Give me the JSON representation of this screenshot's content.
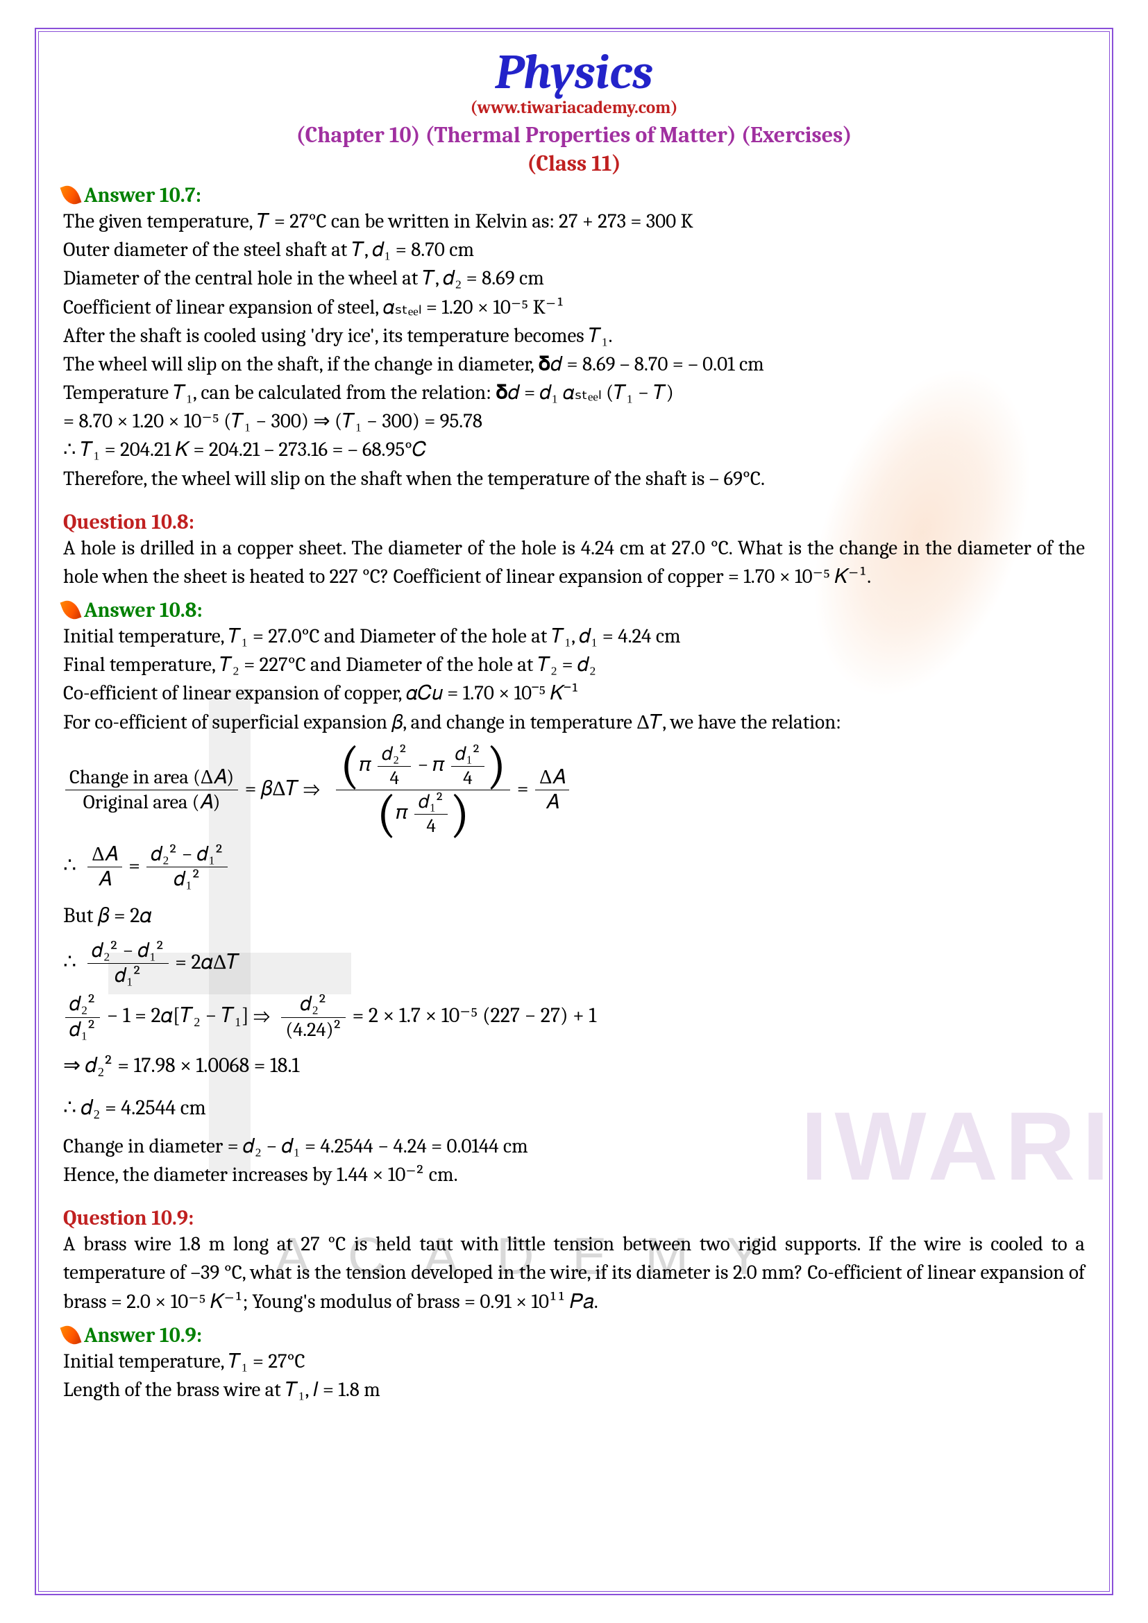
{
  "header": {
    "title": "Physics",
    "website": "(www.tiwariacademy.com)",
    "chapter": "(Chapter 10) (Thermal Properties of Matter) (Exercises)",
    "class_label": "(Class 11)"
  },
  "watermark": {
    "brand": "IWARI",
    "sub": "ACADEMY",
    "brand_color": "rgba(180,140,200,0.25)",
    "sub_color": "rgba(130,130,130,0.3)"
  },
  "colors": {
    "title": "#2323c9",
    "red": "#c02020",
    "purple": "#a030a0",
    "green": "#008000",
    "border": "#8a4fd8"
  },
  "ans107": {
    "heading": "Answer 10.7:",
    "l1": "The given temperature, 𝑇  =  27°C can be written in Kelvin as: 27  +  273  =  300 K",
    "l2": "Outer diameter of the steel shaft at 𝑇, 𝑑₁  =  8.70 cm",
    "l3": "Diameter of the central hole in the wheel at 𝑇, 𝑑₂  =  8.69 cm",
    "l4": "Coefficient of linear expansion of steel, 𝛼ₛₜₑₑₗ  =  1.20  ×  10⁻⁵ K⁻¹",
    "l5": "After the shaft is cooled using 'dry ice', its temperature becomes 𝑇₁.",
    "l6": "The wheel will slip on the shaft, if the change in diameter, 𝛅𝑑  =  8.69 – 8.70 = –  0.01 cm",
    "l7": "Temperature 𝑇₁, can be calculated from the relation: 𝛅𝑑  =  𝑑₁ 𝛼ₛₜₑₑₗ (𝑇₁ − 𝑇)",
    "l8": "=  8.70  ×  1.20  ×  10⁻⁵ (𝑇₁ − 300) ⇒ (𝑇₁ − 300)  =  95.78",
    "l9": "∴  𝑇₁ =  204.21 𝐾 =  204.21 – 273.16 = – 68.95°𝐶",
    "l10": "Therefore, the wheel will slip on the shaft when the temperature of the shaft is – 69°C."
  },
  "q108": {
    "heading": "Question 10.8:",
    "text": "A hole is drilled in a copper sheet. The diameter of the hole is 4.24 cm at 27.0 °C. What is the change in the diameter of the hole when the sheet is heated to 227 °C? Coefficient of linear expansion of copper =  1.70  ×  10⁻⁵ 𝐾⁻¹."
  },
  "ans108": {
    "heading": "Answer 10.8:",
    "l1": "Initial temperature, 𝑇₁  =  27.0°C and Diameter of the hole at 𝑇₁, 𝑑₁ =  4.24 cm",
    "l2": "Final temperature, 𝑇₂ =  227°C and Diameter of the hole at 𝑇₂  =  𝑑₂",
    "l3": "Co-efficient of linear expansion of copper, 𝛼𝐶𝑢 =  1.70  ×  10⁻⁵ 𝐾⁻¹",
    "l4": "For co-efficient of superficial expansion 𝛽, and change in temperature Δ𝑇, we have the relation:",
    "eq1_lhs_num": "Change in area (Δ𝐴)",
    "eq1_lhs_den": "Original area (𝐴)",
    "eq1_mid": "= 𝛽Δ𝑇   ⇒",
    "eq1_rhs": "Δ𝐴",
    "eq1_rhs_den": "𝐴",
    "eq2_pre": "∴",
    "eq2_num": "Δ𝐴",
    "eq2_den": "𝐴",
    "eq2_eq": "=",
    "eq2_rhs_num": "𝑑₂² − 𝑑₁²",
    "eq2_rhs_den": "𝑑₁²",
    "eq3": "But 𝛽 = 2𝛼",
    "eq4_pre": "∴",
    "eq4_num": "𝑑₂² − 𝑑₁²",
    "eq4_den": "𝑑₁²",
    "eq4_rhs": "= 2𝛼Δ𝑇",
    "eq5_lnum": "𝑑₂²",
    "eq5_lden": "𝑑₁²",
    "eq5_mid": "− 1 = 2𝛼[𝑇₂ − 𝑇₁] ⇒",
    "eq5_rnum": "𝑑₂²",
    "eq5_rden": "(4.24)²",
    "eq5_rhs": "= 2 × 1.7 × 10⁻⁵ (227 − 27) + 1",
    "eq6": "⇒ 𝑑₂² = 17.98 × 1.0068 = 18.1",
    "eq7": "∴  𝑑₂ = 4.2544 cm",
    "l5": "Change in diameter =  𝑑₂ − 𝑑₁ = 4.2544 − 4.24  =  0.0144 cm",
    "l6": "Hence, the diameter increases by 1.44  ×  10⁻² cm."
  },
  "q109": {
    "heading": "Question 10.9:",
    "text": "A brass wire 1.8 m long at 27 °C is held taut with little tension between two rigid supports. If the wire is cooled to a temperature of –39 °C, what is the tension developed in the wire, if its diameter is 2.0 mm? Co-efficient of linear expansion of brass =  2.0  ×  10⁻⁵ 𝐾⁻¹; Young's modulus of brass = 0.91  × 10¹¹ 𝑃𝑎."
  },
  "ans109": {
    "heading": "Answer 10.9:",
    "l1": "Initial temperature, 𝑇₁ = 27°C",
    "l2": "Length of the brass wire at 𝑇₁, 𝑙 = 1.8 m"
  }
}
